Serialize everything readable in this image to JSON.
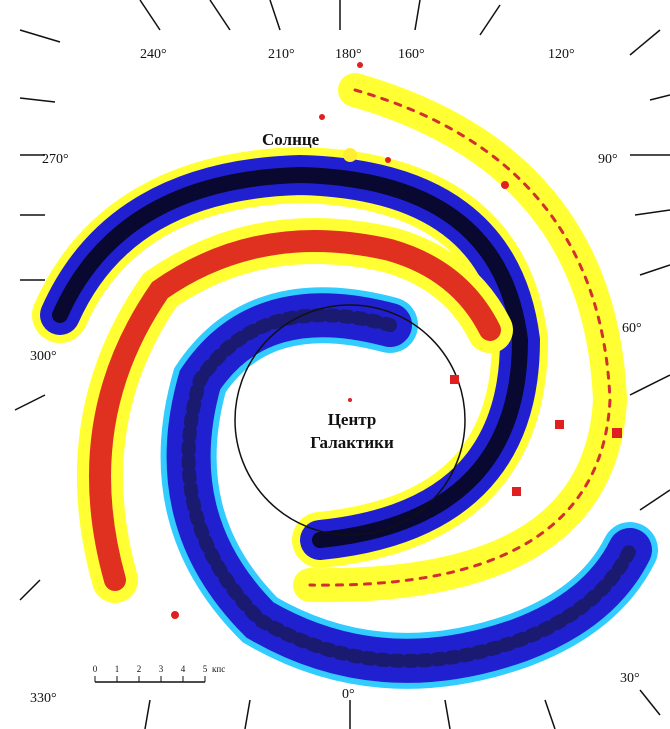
{
  "longitude_labels": [
    "240°",
    "210°",
    "180°",
    "160°",
    "120°",
    "270°",
    "90°",
    "300°",
    "60°",
    "330°",
    "0°",
    "30°"
  ],
  "sun_label": "Солнце",
  "center_label": [
    "Центр",
    "Галактики"
  ],
  "scale": {
    "ticks": [
      "0",
      "1",
      "2",
      "3",
      "4",
      "5"
    ],
    "unit": "кпс"
  }
}
